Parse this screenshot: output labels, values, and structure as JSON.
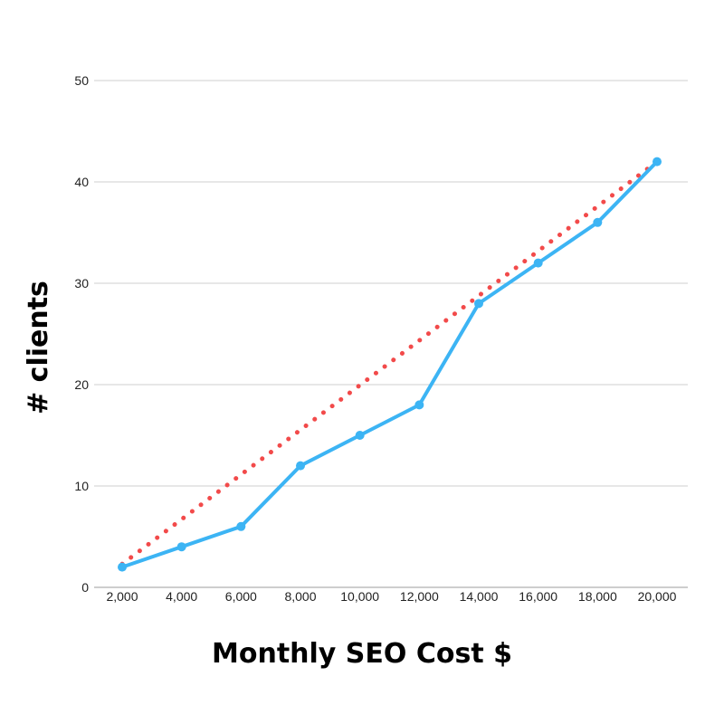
{
  "chart_data": {
    "type": "line",
    "title": "",
    "xlabel": "Monthly SEO Cost $",
    "ylabel": "# clients",
    "x": [
      2000,
      4000,
      6000,
      8000,
      10000,
      12000,
      14000,
      16000,
      18000,
      20000
    ],
    "x_tick_labels": [
      "2,000",
      "4,000",
      "6,000",
      "8,000",
      "10,000",
      "12,000",
      "14,000",
      "16,000",
      "18,000",
      "20,000"
    ],
    "y_ticks": [
      0,
      10,
      20,
      30,
      40,
      50
    ],
    "y_tick_labels": [
      "0",
      "10",
      "20",
      "30",
      "40",
      "50"
    ],
    "ylim": [
      0,
      50
    ],
    "grid": true,
    "legend": "none",
    "series": [
      {
        "name": "clients",
        "style": "solid-with-markers",
        "color": "#3CB4F4",
        "values": [
          2,
          4,
          6,
          12,
          15,
          18,
          28,
          32,
          36,
          42
        ]
      },
      {
        "name": "trendline",
        "style": "dotted",
        "color": "#F24A4A",
        "start": [
          2000,
          2.3
        ],
        "end": [
          20000,
          42
        ]
      }
    ]
  }
}
